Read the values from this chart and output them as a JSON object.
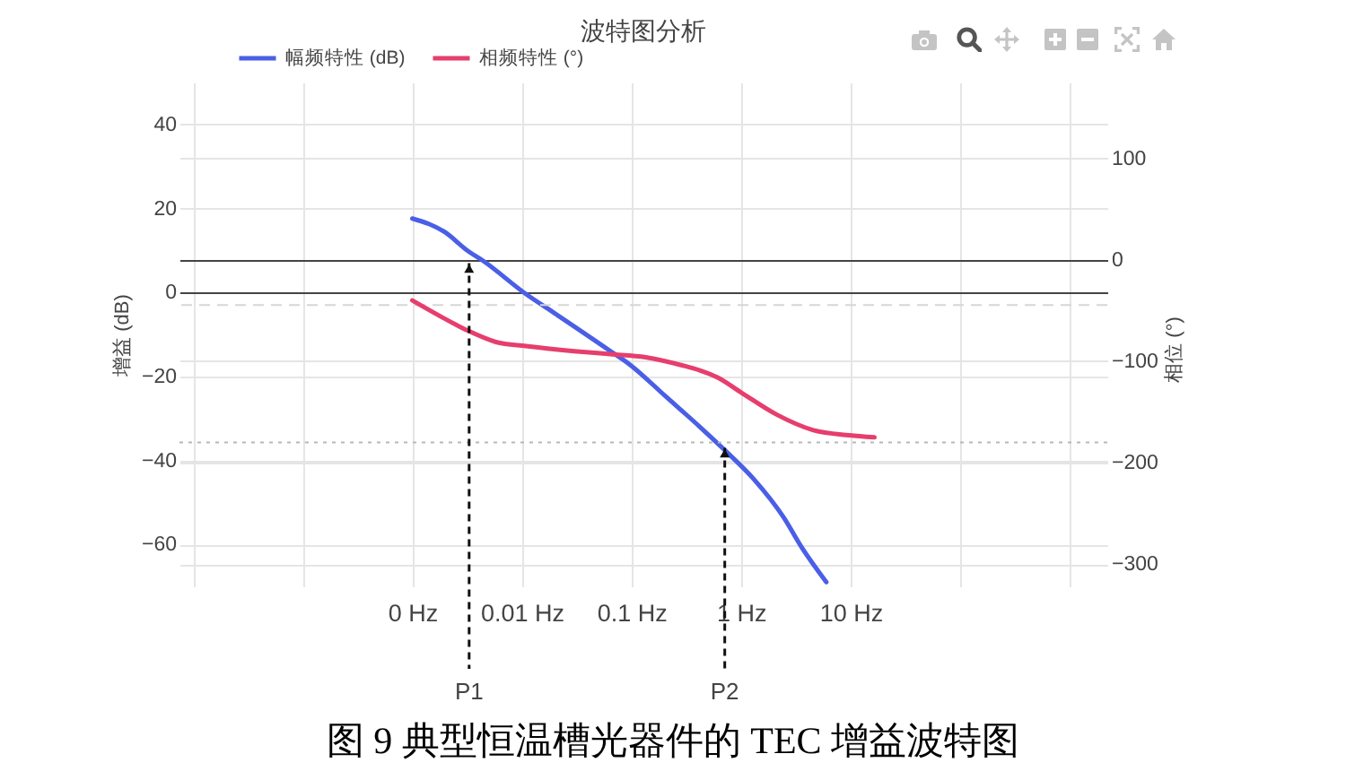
{
  "chart_data": {
    "type": "line",
    "title": "波特图分析",
    "ylabel": "增益 (dB)",
    "y2label": "相位 (°)",
    "series": [
      {
        "name": "幅频特性 (dB)",
        "color": "#4a5fe6",
        "x": [
          0.001,
          0.002,
          0.0031,
          0.0045,
          0.0109,
          0.02,
          0.0636,
          0.099,
          0.2,
          0.42,
          0.74,
          1.3,
          2.45,
          3.57,
          6.0
        ],
        "values": [
          17.6,
          14.3,
          10.2,
          7.4,
          -0.4,
          -5,
          -13.9,
          -17.4,
          -24.5,
          -32,
          -38,
          -44.4,
          -53.6,
          -60.7,
          -69
        ]
      },
      {
        "name": "相频特性 (°)",
        "color": "#e63e6d",
        "axis": "y2",
        "x": [
          0.001,
          0.0019,
          0.0031,
          0.0058,
          0.0109,
          0.03,
          0.064,
          0.135,
          0.29,
          0.42,
          0.61,
          1.01,
          2.15,
          4.58,
          9.75,
          16.5
        ],
        "values": [
          -40,
          -57,
          -69,
          -81,
          -85,
          -90,
          -93,
          -96,
          -104,
          -109,
          -116,
          -131,
          -153,
          -168,
          -173,
          -175
        ]
      }
    ],
    "log": "x",
    "xlim": [
      7.5e-06,
      2200
    ],
    "xticks": [
      {
        "value": 1e-05,
        "label": null
      },
      {
        "value": 0.0001,
        "label": null
      },
      {
        "value": 0.001,
        "label": "0 Hz"
      },
      {
        "value": 0.01,
        "label": "0.01 Hz"
      },
      {
        "value": 0.1,
        "label": "0.1 Hz"
      },
      {
        "value": 1,
        "label": "1 Hz"
      },
      {
        "value": 10,
        "label": "10 Hz"
      },
      {
        "value": 100,
        "label": null
      },
      {
        "value": 1000,
        "label": null
      }
    ],
    "ylim": [
      -70,
      50
    ],
    "yticks": [
      -60,
      -40,
      -20,
      0,
      20,
      40
    ],
    "y2lim": [
      -322,
      175
    ],
    "y2ticks": [
      -300,
      -200,
      -100,
      0,
      100
    ],
    "grid": true,
    "legend": "top",
    "ref_lines": [
      {
        "axis": "y",
        "value": -3,
        "color": "#d6d6d6",
        "line_style": "dashed"
      },
      {
        "axis": "y2",
        "value": -180,
        "color": "#b8b8b8",
        "line_style": "dotted"
      }
    ],
    "annotations": [
      "图 9 典型恒温槽光器件的 TEC 增益波特图",
      {
        "text": "P1",
        "x": 0.0033,
        "y": 7
      },
      {
        "text": "P2",
        "x": 0.71,
        "y": -37
      }
    ]
  }
}
